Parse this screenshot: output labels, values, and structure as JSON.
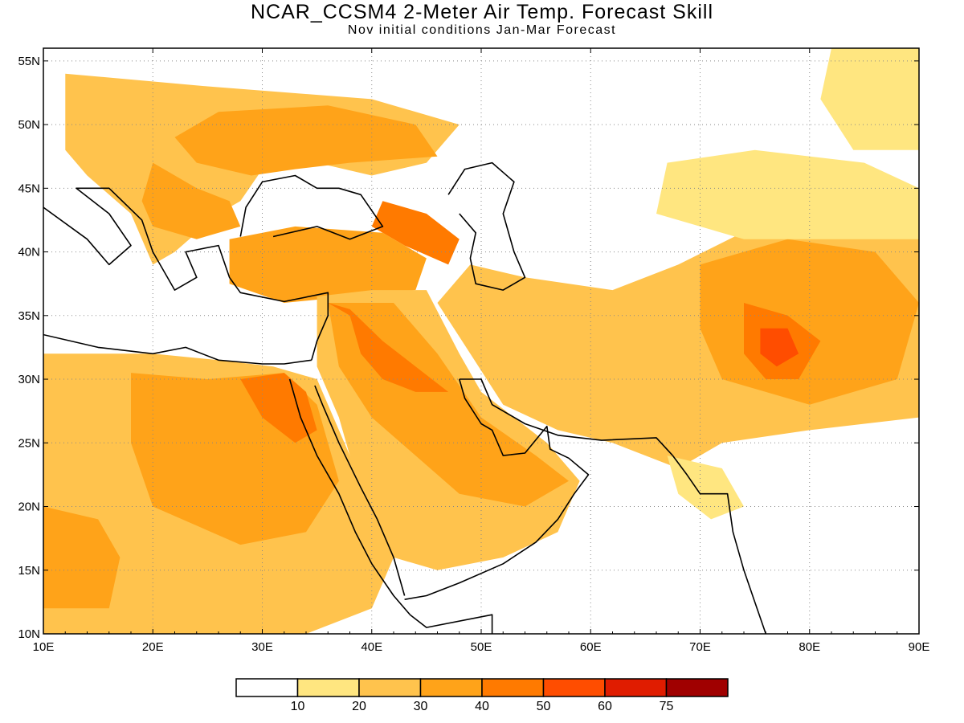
{
  "header": {
    "title": "NCAR_CCSM4 2-Meter Air Temp. Forecast Skill",
    "subtitle": "Nov initial conditions  Jan-Mar Forecast"
  },
  "axes": {
    "lon_labels": [
      "10E",
      "20E",
      "30E",
      "40E",
      "50E",
      "60E",
      "70E",
      "80E",
      "90E"
    ],
    "lat_labels": [
      "10N",
      "15N",
      "20N",
      "25N",
      "30N",
      "35N",
      "40N",
      "45N",
      "50N",
      "55N"
    ],
    "lon_range": [
      10,
      90
    ],
    "lat_range": [
      10,
      56
    ],
    "grid": "dotted"
  },
  "colorbar": {
    "colors": [
      "#ffffff",
      "#ffe680",
      "#ffc34d",
      "#ffa319",
      "#ff7a00",
      "#ff4d00",
      "#e01c00",
      "#a00000"
    ],
    "labels": [
      "10",
      "20",
      "30",
      "40",
      "50",
      "60",
      "75"
    ]
  },
  "regions": [
    {
      "name": "europe",
      "level": 2,
      "lonlat": [
        [
          12,
          54
        ],
        [
          25,
          53
        ],
        [
          40,
          52
        ],
        [
          48,
          50
        ],
        [
          45,
          47
        ],
        [
          40,
          46
        ],
        [
          35,
          47
        ],
        [
          30,
          46.5
        ],
        [
          28,
          44
        ],
        [
          26,
          43
        ],
        [
          22,
          40
        ],
        [
          20,
          39
        ],
        [
          18,
          43
        ],
        [
          14,
          46
        ],
        [
          12,
          48
        ]
      ]
    },
    {
      "name": "ukraine",
      "level": 3,
      "lonlat": [
        [
          26,
          51
        ],
        [
          36,
          51.5
        ],
        [
          44,
          50
        ],
        [
          46,
          47.5
        ],
        [
          38,
          47
        ],
        [
          33,
          46.5
        ],
        [
          29,
          46
        ],
        [
          24,
          47
        ],
        [
          22,
          49
        ]
      ]
    },
    {
      "name": "balkans",
      "level": 3,
      "lonlat": [
        [
          20,
          47
        ],
        [
          24,
          45
        ],
        [
          27,
          44
        ],
        [
          28,
          42
        ],
        [
          24,
          41
        ],
        [
          20,
          42
        ],
        [
          19,
          44
        ]
      ]
    },
    {
      "name": "caucasus",
      "level": 4,
      "lonlat": [
        [
          41,
          44
        ],
        [
          45,
          43
        ],
        [
          48,
          41
        ],
        [
          47,
          39
        ],
        [
          43,
          40.5
        ],
        [
          40,
          42
        ]
      ]
    },
    {
      "name": "turkey",
      "level": 3,
      "lonlat": [
        [
          27,
          41
        ],
        [
          33,
          42
        ],
        [
          41,
          41.5
        ],
        [
          45,
          39.5
        ],
        [
          44,
          37
        ],
        [
          38,
          36.5
        ],
        [
          32,
          36
        ],
        [
          27,
          37.5
        ]
      ]
    },
    {
      "name": "north-africa",
      "level": 2,
      "lonlat": [
        [
          10,
          32
        ],
        [
          20,
          32
        ],
        [
          26,
          31.5
        ],
        [
          31,
          31
        ],
        [
          35,
          30
        ],
        [
          37,
          26
        ],
        [
          39,
          22
        ],
        [
          42,
          16
        ],
        [
          40,
          12
        ],
        [
          34,
          10
        ],
        [
          10,
          10
        ]
      ]
    },
    {
      "name": "sahara-east",
      "level": 3,
      "lonlat": [
        [
          18,
          30.5
        ],
        [
          25,
          30
        ],
        [
          32,
          30.5
        ],
        [
          35,
          28
        ],
        [
          37,
          22
        ],
        [
          34,
          18
        ],
        [
          28,
          17
        ],
        [
          20,
          20
        ],
        [
          18,
          25
        ]
      ]
    },
    {
      "name": "egypt-hot",
      "level": 4,
      "lonlat": [
        [
          28,
          30
        ],
        [
          32,
          30.5
        ],
        [
          34,
          29
        ],
        [
          35,
          26
        ],
        [
          33,
          25
        ],
        [
          30,
          27
        ]
      ]
    },
    {
      "name": "west-sahara",
      "level": 3,
      "lonlat": [
        [
          10,
          20
        ],
        [
          15,
          19
        ],
        [
          17,
          16
        ],
        [
          16,
          12
        ],
        [
          10,
          12
        ]
      ]
    },
    {
      "name": "levant-arabia",
      "level": 2,
      "lonlat": [
        [
          35,
          36.5
        ],
        [
          40,
          37
        ],
        [
          45,
          37
        ],
        [
          48,
          32
        ],
        [
          50,
          29
        ],
        [
          56,
          25
        ],
        [
          59,
          22
        ],
        [
          57,
          18
        ],
        [
          52,
          16
        ],
        [
          46,
          15
        ],
        [
          42,
          16
        ],
        [
          39,
          21
        ],
        [
          37,
          27
        ],
        [
          35,
          31
        ]
      ]
    },
    {
      "name": "arabia-core",
      "level": 3,
      "lonlat": [
        [
          36,
          36
        ],
        [
          42,
          36
        ],
        [
          46,
          32
        ],
        [
          50,
          27
        ],
        [
          55,
          24
        ],
        [
          58,
          22
        ],
        [
          54,
          20
        ],
        [
          48,
          21
        ],
        [
          44,
          24
        ],
        [
          40,
          27
        ],
        [
          37,
          31
        ]
      ]
    },
    {
      "name": "levant-hot",
      "level": 4,
      "lonlat": [
        [
          36,
          36
        ],
        [
          38,
          35
        ],
        [
          39,
          32
        ],
        [
          41,
          30
        ],
        [
          44,
          29
        ],
        [
          47,
          29
        ],
        [
          44,
          31
        ],
        [
          41,
          33
        ],
        [
          38,
          35.5
        ]
      ]
    },
    {
      "name": "persian",
      "level": 2,
      "lonlat": [
        [
          49,
          39
        ],
        [
          54,
          38
        ],
        [
          62,
          37
        ],
        [
          68,
          39
        ],
        [
          75,
          42
        ],
        [
          85,
          43
        ],
        [
          90,
          41
        ],
        [
          90,
          27
        ],
        [
          80,
          26
        ],
        [
          72,
          25
        ],
        [
          68,
          23
        ],
        [
          62,
          25
        ],
        [
          57,
          26
        ],
        [
          52,
          28
        ],
        [
          49,
          32
        ],
        [
          46,
          36
        ]
      ]
    },
    {
      "name": "persian-warm",
      "level": 3,
      "lonlat": [
        [
          70,
          39
        ],
        [
          78,
          41
        ],
        [
          86,
          40
        ],
        [
          90,
          36
        ],
        [
          88,
          30
        ],
        [
          80,
          28
        ],
        [
          72,
          30
        ],
        [
          70,
          34
        ]
      ]
    },
    {
      "name": "himalaya-hot",
      "level": 4,
      "lonlat": [
        [
          74,
          36
        ],
        [
          78,
          35
        ],
        [
          81,
          33
        ],
        [
          79,
          30
        ],
        [
          76,
          30
        ],
        [
          74,
          32
        ]
      ]
    },
    {
      "name": "himalaya-core",
      "level": 5,
      "lonlat": [
        [
          75.5,
          34
        ],
        [
          78,
          34
        ],
        [
          79,
          32
        ],
        [
          77,
          31
        ],
        [
          75.5,
          32
        ]
      ]
    },
    {
      "name": "central-asia-north",
      "level": 1,
      "lonlat": [
        [
          67,
          47
        ],
        [
          75,
          48
        ],
        [
          85,
          47
        ],
        [
          90,
          45
        ],
        [
          90,
          41
        ],
        [
          83,
          41
        ],
        [
          74,
          41
        ],
        [
          66,
          43
        ]
      ]
    },
    {
      "name": "india-patch",
      "level": 1,
      "lonlat": [
        [
          67,
          24
        ],
        [
          72,
          23
        ],
        [
          74,
          20
        ],
        [
          71,
          19
        ],
        [
          68,
          21
        ]
      ]
    },
    {
      "name": "mongolia",
      "level": 1,
      "lonlat": [
        [
          82,
          56
        ],
        [
          90,
          56
        ],
        [
          90,
          48
        ],
        [
          84,
          48
        ],
        [
          81,
          52
        ]
      ]
    }
  ],
  "coastlines": [
    {
      "name": "black-sea",
      "lonlat": [
        [
          28,
          41.2
        ],
        [
          28.5,
          43.5
        ],
        [
          30,
          45.5
        ],
        [
          33,
          46
        ],
        [
          35,
          45
        ],
        [
          37,
          45
        ],
        [
          39,
          44.5
        ],
        [
          41,
          42
        ],
        [
          38,
          41
        ],
        [
          35,
          42
        ],
        [
          31,
          41.2
        ]
      ]
    },
    {
      "name": "caspian-sea",
      "lonlat": [
        [
          47,
          44.5
        ],
        [
          48.5,
          46.5
        ],
        [
          51,
          47
        ],
        [
          53,
          45.5
        ],
        [
          52,
          43
        ],
        [
          53,
          40
        ],
        [
          54,
          38
        ],
        [
          52,
          37
        ],
        [
          49.5,
          37.5
        ],
        [
          49,
          39.5
        ],
        [
          49.5,
          41.5
        ],
        [
          48,
          43
        ]
      ]
    },
    {
      "name": "mediterranean-south",
      "lonlat": [
        [
          10,
          33.5
        ],
        [
          15,
          32.5
        ],
        [
          20,
          32
        ],
        [
          23,
          32.5
        ],
        [
          26,
          31.5
        ],
        [
          30,
          31.2
        ],
        [
          32,
          31.2
        ],
        [
          34.5,
          31.5
        ]
      ]
    },
    {
      "name": "mediterranean-north",
      "lonlat": [
        [
          10,
          43.5
        ],
        [
          14,
          41
        ],
        [
          16,
          39
        ],
        [
          18,
          40.5
        ],
        [
          16,
          43
        ],
        [
          13,
          45
        ],
        [
          16,
          45
        ],
        [
          19,
          42.5
        ],
        [
          20,
          40
        ],
        [
          22,
          37
        ],
        [
          24,
          38
        ],
        [
          23,
          40
        ],
        [
          26,
          40.5
        ],
        [
          27,
          38
        ],
        [
          28,
          36.8
        ],
        [
          32,
          36.1
        ],
        [
          36,
          36.8
        ],
        [
          36,
          35
        ],
        [
          35,
          33
        ],
        [
          34.5,
          31.5
        ]
      ]
    },
    {
      "name": "red-sea-west",
      "lonlat": [
        [
          32.5,
          30
        ],
        [
          33.5,
          27
        ],
        [
          35,
          24
        ],
        [
          37,
          21
        ],
        [
          38.5,
          18
        ],
        [
          40,
          15.5
        ],
        [
          42,
          13
        ],
        [
          43.5,
          11.5
        ]
      ]
    },
    {
      "name": "red-sea-east",
      "lonlat": [
        [
          34.8,
          29.5
        ],
        [
          35.5,
          28
        ],
        [
          37,
          25
        ],
        [
          39,
          21.5
        ],
        [
          40.5,
          19
        ],
        [
          42,
          16
        ],
        [
          43,
          13
        ]
      ]
    },
    {
      "name": "arabia-south",
      "lonlat": [
        [
          43,
          12.7
        ],
        [
          45,
          13
        ],
        [
          48,
          14
        ],
        [
          52,
          15.5
        ],
        [
          55,
          17.2
        ],
        [
          57,
          19
        ],
        [
          58.5,
          21
        ],
        [
          59.8,
          22.5
        ],
        [
          58,
          23.8
        ],
        [
          56.3,
          24.5
        ],
        [
          56,
          26.3
        ],
        [
          54,
          24.2
        ],
        [
          52,
          24
        ],
        [
          51,
          26
        ],
        [
          50,
          26.5
        ],
        [
          48.5,
          28.5
        ],
        [
          48,
          30
        ]
      ]
    },
    {
      "name": "iran-coast",
      "lonlat": [
        [
          48,
          30
        ],
        [
          50,
          30
        ],
        [
          51,
          28
        ],
        [
          54,
          26.5
        ],
        [
          57,
          25.6
        ],
        [
          61,
          25.2
        ],
        [
          66,
          25.4
        ],
        [
          67.5,
          24
        ]
      ]
    },
    {
      "name": "india-west",
      "lonlat": [
        [
          67.5,
          24
        ],
        [
          68.8,
          22.5
        ],
        [
          70,
          21
        ],
        [
          72.5,
          21
        ],
        [
          73,
          18
        ],
        [
          74,
          15
        ],
        [
          75,
          12.5
        ],
        [
          76,
          10
        ]
      ]
    },
    {
      "name": "horn-africa",
      "lonlat": [
        [
          43.5,
          11.5
        ],
        [
          45,
          10.5
        ],
        [
          51,
          11.5
        ],
        [
          51,
          10
        ]
      ]
    }
  ]
}
